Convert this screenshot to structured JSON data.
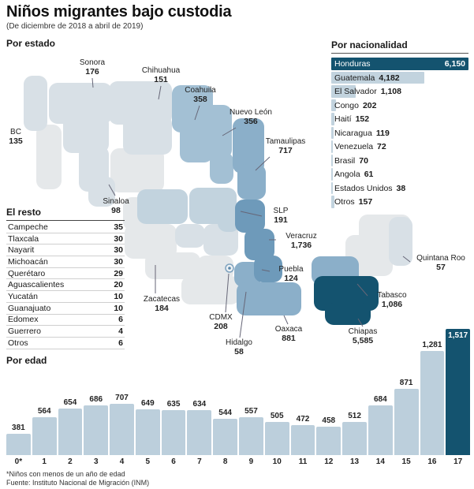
{
  "meta": {
    "title": "Niños migrantes bajo custodia",
    "subtitle": "(De diciembre de 2018 a abril de 2019)",
    "footnote": "*Niños con menos de un año de edad",
    "source": "Fuente: Instituto Nacional de Migración (INM)"
  },
  "colors": {
    "dark": "#14536f",
    "mid_dark": "#6e9aba",
    "medium": "#8bafc9",
    "mid_light": "#a3c0d4",
    "light_blue": "#c2d3de",
    "pale_blue": "#d8e0e6",
    "pale_gray": "#e5e8ea",
    "age_bar": "#bccfdc"
  },
  "chart_data": [
    {
      "type": "map",
      "title": "Por estado",
      "states": [
        {
          "name": "Sonora",
          "value": 176,
          "display": "176",
          "shade": "pale_blue"
        },
        {
          "name": "Chihuahua",
          "value": 151,
          "display": "151",
          "shade": "pale_blue"
        },
        {
          "name": "Coahuila",
          "value": 358,
          "display": "358",
          "shade": "mid_light"
        },
        {
          "name": "Nuevo León",
          "value": 356,
          "display": "356",
          "shade": "mid_light"
        },
        {
          "name": "Tamaulipas",
          "value": 717,
          "display": "717",
          "shade": "medium"
        },
        {
          "name": "BC",
          "value": 135,
          "display": "135",
          "shade": "pale_blue"
        },
        {
          "name": "Sinaloa",
          "value": 98,
          "display": "98",
          "shade": "pale_blue"
        },
        {
          "name": "Zacatecas",
          "value": 184,
          "display": "184",
          "shade": "light_blue"
        },
        {
          "name": "SLP",
          "value": 191,
          "display": "191",
          "shade": "light_blue"
        },
        {
          "name": "Puebla",
          "value": 124,
          "display": "124",
          "shade": "medium"
        },
        {
          "name": "Veracruz",
          "value": 1736,
          "display": "1,736",
          "shade": "mid_dark"
        },
        {
          "name": "Quintana Roo",
          "value": 57,
          "display": "57",
          "shade": "pale_blue"
        },
        {
          "name": "Tabasco",
          "value": 1086,
          "display": "1,086",
          "shade": "medium"
        },
        {
          "name": "Chiapas",
          "value": 5585,
          "display": "5,585",
          "shade": "dark"
        },
        {
          "name": "CDMX",
          "value": 208,
          "display": "208",
          "shade": "light_blue"
        },
        {
          "name": "Oaxaca",
          "value": 881,
          "display": "881",
          "shade": "medium"
        },
        {
          "name": "Hidalgo",
          "value": 58,
          "display": "58",
          "shade": "pale_blue"
        }
      ]
    },
    {
      "type": "bar",
      "title": "Por nacionalidad",
      "orientation": "horizontal",
      "max": 6150,
      "categories": [
        "Honduras",
        "Guatemala",
        "El Salvador",
        "Congo",
        "Haití",
        "Nicaragua",
        "Venezuela",
        "Brasil",
        "Angola",
        "Estados Unidos",
        "Otros"
      ],
      "values": [
        6150,
        4182,
        1108,
        202,
        152,
        119,
        72,
        70,
        61,
        38,
        157
      ],
      "displays": [
        "6,150",
        "4,182",
        "1,108",
        "202",
        "152",
        "119",
        "72",
        "70",
        "61",
        "38",
        "157"
      ],
      "highlight_index": 0
    },
    {
      "type": "table",
      "title": "El resto",
      "rows": [
        {
          "name": "Campeche",
          "value": 35
        },
        {
          "name": "Tlaxcala",
          "value": 30
        },
        {
          "name": "Nayarit",
          "value": 30
        },
        {
          "name": "Michoacán",
          "value": 30
        },
        {
          "name": "Querétaro",
          "value": 29
        },
        {
          "name": "Aguascalientes",
          "value": 20
        },
        {
          "name": "Yucatán",
          "value": 10
        },
        {
          "name": "Guanajuato",
          "value": 10
        },
        {
          "name": "Edomex",
          "value": 6
        },
        {
          "name": "Guerrero",
          "value": 4
        },
        {
          "name": "Otros",
          "value": 6
        }
      ]
    },
    {
      "type": "bar",
      "title": "Por edad",
      "orientation": "vertical",
      "categories": [
        "0*",
        "1",
        "2",
        "3",
        "4",
        "5",
        "6",
        "7",
        "8",
        "9",
        "10",
        "11",
        "12",
        "13",
        "14",
        "15",
        "16",
        "17"
      ],
      "values": [
        381,
        564,
        654,
        686,
        707,
        649,
        635,
        634,
        544,
        557,
        505,
        472,
        458,
        512,
        684,
        871,
        1281,
        1517
      ],
      "displays": [
        "381",
        "564",
        "654",
        "686",
        "707",
        "649",
        "635",
        "634",
        "544",
        "557",
        "505",
        "472",
        "458",
        "512",
        "684",
        "871",
        "1,281",
        "1,517"
      ],
      "highlight_index": 17,
      "ylim": [
        0,
        1517
      ]
    }
  ]
}
